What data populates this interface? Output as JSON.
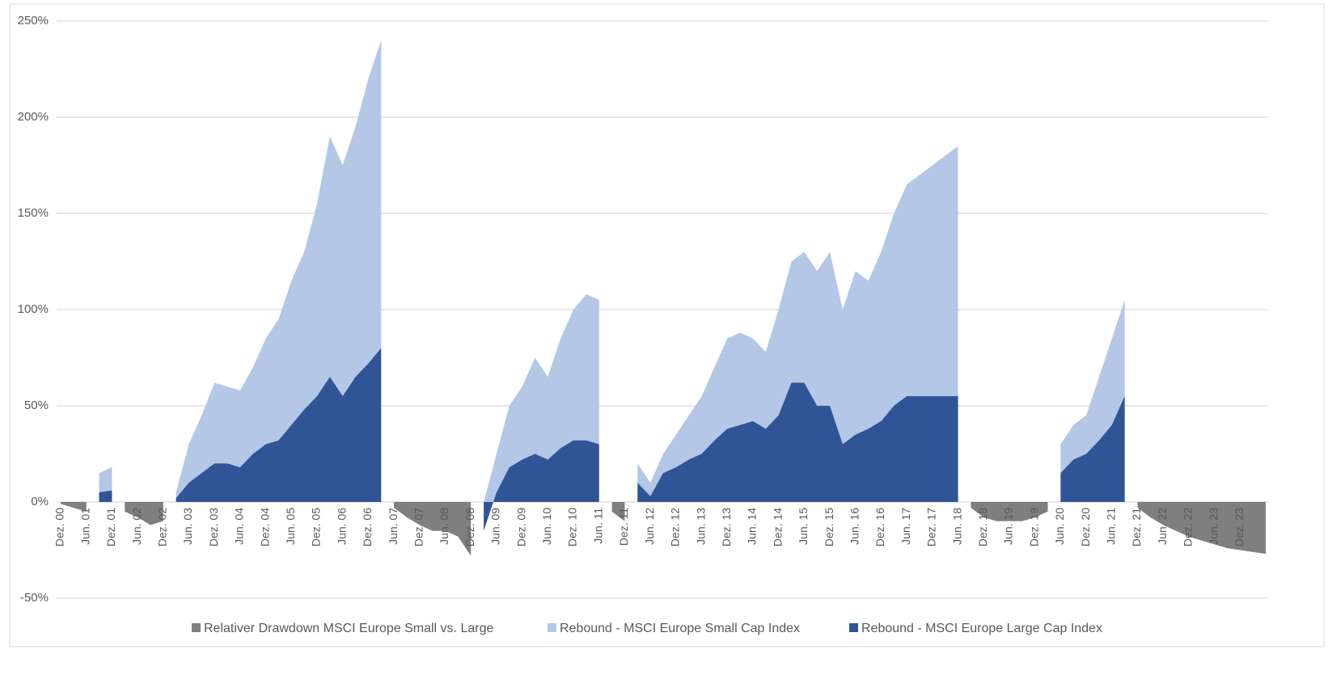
{
  "chart_data": {
    "type": "area",
    "categories": [
      "Dez. 00",
      null,
      "Jun. 01",
      null,
      "Dez. 01",
      null,
      "Jun. 02",
      null,
      "Dez. 02",
      null,
      "Jun. 03",
      null,
      "Dez. 03",
      null,
      "Jun. 04",
      null,
      "Dez. 04",
      null,
      "Jun. 05",
      null,
      "Dez. 05",
      null,
      "Jun. 06",
      null,
      "Dez. 06",
      null,
      "Jun. 07",
      null,
      "Dez. 07",
      null,
      "Jun. 08",
      null,
      "Dez. 08",
      null,
      "Jun. 09",
      null,
      "Dez. 09",
      null,
      "Jun. 10",
      null,
      "Dez. 10",
      null,
      "Jun. 11",
      null,
      "Dez. 11",
      null,
      "Jun. 12",
      null,
      "Dez. 12",
      null,
      "Jun. 13",
      null,
      "Dez. 13",
      null,
      "Jun. 14",
      null,
      "Dez. 14",
      null,
      "Jun. 15",
      null,
      "Dez. 15",
      null,
      "Jun. 16",
      null,
      "Dez. 16",
      null,
      "Jun. 17",
      null,
      "Dez. 17",
      null,
      "Jun. 18",
      null,
      "Dez. 18",
      null,
      "Jun. 19",
      null,
      "Dez. 19",
      null,
      "Jun. 20",
      null,
      "Dez. 20",
      null,
      "Jun. 21",
      null,
      "Dez. 21",
      null,
      "Jun. 22",
      null,
      "Dez. 22",
      null,
      "Jun. 23",
      null,
      "Dez. 23",
      null,
      null
    ],
    "series": [
      {
        "name": "Relativer Drawdown MSCI Europe Small vs. Large",
        "color": "#7f7f7f",
        "values": [
          -1,
          -3,
          -5,
          null,
          null,
          -5,
          -8,
          -12,
          -10,
          null,
          null,
          null,
          null,
          null,
          null,
          null,
          null,
          null,
          null,
          null,
          null,
          null,
          null,
          null,
          null,
          null,
          -3,
          -8,
          -12,
          -15,
          -15,
          -18,
          -28,
          null,
          null,
          null,
          null,
          null,
          null,
          null,
          null,
          null,
          null,
          -5,
          -10,
          null,
          null,
          null,
          null,
          null,
          null,
          null,
          null,
          null,
          null,
          null,
          null,
          null,
          null,
          null,
          null,
          null,
          null,
          null,
          null,
          null,
          null,
          null,
          null,
          null,
          null,
          -3,
          -8,
          -10,
          -10,
          -10,
          -8,
          -5,
          null,
          null,
          null,
          null,
          null,
          null,
          -3,
          -8,
          -12,
          -15,
          -18,
          -20,
          -22,
          -24,
          -25,
          -26,
          -27
        ]
      },
      {
        "name": "Rebound - MSCI Europe Small Cap Index",
        "color": "#b4c7e7",
        "values": [
          null,
          null,
          null,
          15,
          18,
          null,
          null,
          null,
          null,
          5,
          30,
          45,
          62,
          60,
          58,
          70,
          85,
          95,
          115,
          130,
          155,
          190,
          175,
          195,
          220,
          240,
          null,
          null,
          null,
          null,
          null,
          null,
          null,
          0,
          25,
          50,
          60,
          75,
          65,
          85,
          100,
          108,
          105,
          null,
          null,
          20,
          10,
          25,
          35,
          45,
          55,
          70,
          85,
          88,
          85,
          78,
          100,
          125,
          130,
          120,
          130,
          100,
          120,
          115,
          130,
          150,
          165,
          170,
          175,
          180,
          185,
          null,
          null,
          null,
          null,
          null,
          null,
          null,
          30,
          40,
          45,
          65,
          85,
          105,
          null,
          null,
          null,
          null,
          null,
          null,
          null,
          null,
          null,
          null,
          null
        ]
      },
      {
        "name": "Rebound - MSCI Europe Large Cap Index",
        "color": "#2f5597",
        "values": [
          null,
          null,
          null,
          5,
          6,
          null,
          null,
          null,
          null,
          2,
          10,
          15,
          20,
          20,
          18,
          25,
          30,
          32,
          40,
          48,
          55,
          65,
          55,
          65,
          72,
          80,
          null,
          null,
          null,
          null,
          null,
          null,
          null,
          -15,
          5,
          18,
          22,
          25,
          22,
          28,
          32,
          32,
          30,
          null,
          null,
          10,
          3,
          15,
          18,
          22,
          25,
          32,
          38,
          40,
          42,
          38,
          45,
          62,
          62,
          50,
          50,
          30,
          35,
          38,
          42,
          50,
          55,
          55,
          55,
          55,
          55,
          null,
          null,
          null,
          null,
          null,
          null,
          null,
          15,
          22,
          25,
          32,
          40,
          55,
          null,
          null,
          null,
          null,
          null,
          null,
          null,
          null,
          null,
          null,
          null
        ]
      }
    ],
    "ylim": [
      -50,
      250
    ],
    "yticks": [
      {
        "value": -50,
        "label": "-50%"
      },
      {
        "value": 0,
        "label": "0%"
      },
      {
        "value": 50,
        "label": "50%"
      },
      {
        "value": 100,
        "label": "100%"
      },
      {
        "value": 150,
        "label": "150%"
      },
      {
        "value": 200,
        "label": "200%"
      },
      {
        "value": 250,
        "label": "250%"
      }
    ],
    "grid": true,
    "legend": "bottom"
  }
}
